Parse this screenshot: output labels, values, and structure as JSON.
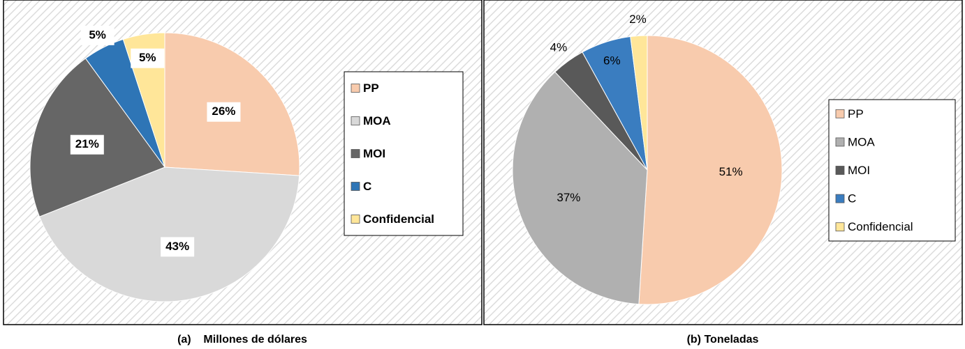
{
  "chart_data": [
    {
      "type": "pie",
      "caption": "(a)    Millones de dólares",
      "categories": [
        "PP",
        "MOA",
        "MOI",
        "C",
        "Confidencial"
      ],
      "values": [
        26,
        43,
        21,
        5,
        5
      ],
      "value_labels": [
        "26%",
        "43%",
        "21%",
        "5%",
        "5%"
      ],
      "colors": [
        "#f8cbad",
        "#d9d9d9",
        "#666666",
        "#2e75b6",
        "#ffe699"
      ]
    },
    {
      "type": "pie",
      "caption": "(b) Toneladas",
      "categories": [
        "PP",
        "MOA",
        "MOI",
        "C",
        "Confidencial"
      ],
      "values": [
        51,
        37,
        4,
        6,
        2
      ],
      "value_labels": [
        "51%",
        "37%",
        "4%",
        "6%",
        "2%"
      ],
      "colors": [
        "#f8cbad",
        "#b0b0b0",
        "#595959",
        "#3a7dc0",
        "#ffe699"
      ]
    }
  ]
}
